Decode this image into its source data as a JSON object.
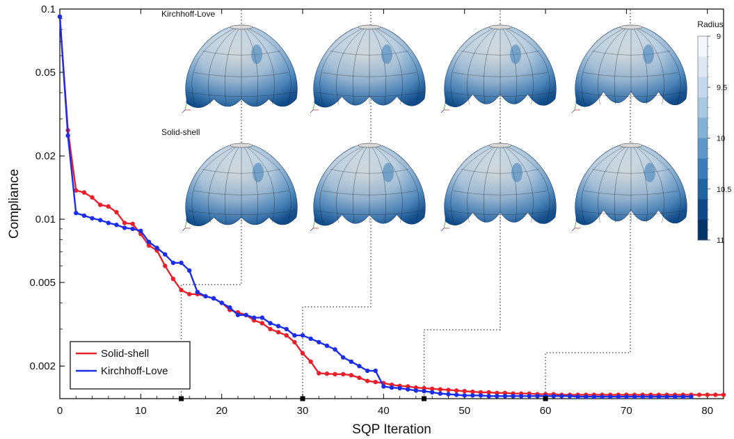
{
  "chart_data": {
    "type": "line",
    "xlabel": "SQP Iteration",
    "ylabel": "Compliance",
    "xlim": [
      0,
      82
    ],
    "ylim": [
      0.0014,
      0.1
    ],
    "y_scale": "log",
    "x_ticks": [
      0,
      10,
      20,
      30,
      40,
      50,
      60,
      70,
      80
    ],
    "y_ticks": [
      {
        "value": 0.1,
        "label": "0.1"
      },
      {
        "value": 0.05,
        "label": "0.05"
      },
      {
        "value": 0.02,
        "label": "0.02"
      },
      {
        "value": 0.01,
        "label": "0.01"
      },
      {
        "value": 0.005,
        "label": "0.005"
      },
      {
        "value": 0.002,
        "label": "0.002"
      }
    ],
    "legend_position": "bottom-left",
    "series": [
      {
        "name": "Solid-shell",
        "color": "#e8202a",
        "x": [
          0,
          1,
          2,
          3,
          4,
          5,
          6,
          7,
          8,
          9,
          10,
          11,
          12,
          13,
          14,
          15,
          16,
          17,
          18,
          19,
          20,
          21,
          22,
          23,
          24,
          25,
          26,
          27,
          28,
          29,
          30,
          31,
          32,
          33,
          34,
          35,
          36,
          37,
          38,
          39,
          40,
          41,
          42,
          43,
          44,
          45,
          46,
          47,
          48,
          49,
          50,
          51,
          52,
          53,
          54,
          55,
          56,
          57,
          58,
          59,
          60,
          61,
          62,
          63,
          64,
          65,
          66,
          67,
          68,
          69,
          70,
          71,
          72,
          73,
          74,
          75,
          76,
          77,
          78,
          79,
          80,
          81,
          82
        ],
        "y": [
          0.092,
          0.0265,
          0.0137,
          0.0134,
          0.0127,
          0.0117,
          0.0115,
          0.0108,
          0.0096,
          0.0095,
          0.0085,
          0.0075,
          0.0071,
          0.006,
          0.0052,
          0.0046,
          0.0044,
          0.0044,
          0.0043,
          0.0042,
          0.004,
          0.0037,
          0.0036,
          0.0035,
          0.0033,
          0.0032,
          0.003,
          0.0029,
          0.0028,
          0.0026,
          0.0023,
          0.0021,
          0.00185,
          0.00184,
          0.00183,
          0.00183,
          0.00181,
          0.00176,
          0.0017,
          0.00168,
          0.00166,
          0.00163,
          0.00161,
          0.0016,
          0.00158,
          0.00157,
          0.00156,
          0.00155,
          0.00154,
          0.00153,
          0.00152,
          0.00151,
          0.0015,
          0.0015,
          0.00149,
          0.00149,
          0.00148,
          0.00148,
          0.00148,
          0.00147,
          0.00147,
          0.00147,
          0.00146,
          0.00146,
          0.00146,
          0.00146,
          0.00146,
          0.00146,
          0.00146,
          0.00146,
          0.00146,
          0.00146,
          0.00146,
          0.00146,
          0.00146,
          0.00146,
          0.00146,
          0.00146,
          0.00146,
          0.00146,
          0.00146,
          0.00146,
          0.00146
        ]
      },
      {
        "name": "Kirchhoff-Love",
        "color": "#1a2ee8",
        "x": [
          0,
          1,
          2,
          3,
          4,
          5,
          6,
          7,
          8,
          9,
          10,
          11,
          12,
          13,
          14,
          15,
          16,
          17,
          18,
          19,
          20,
          21,
          22,
          23,
          24,
          25,
          26,
          27,
          28,
          29,
          30,
          31,
          32,
          33,
          34,
          35,
          36,
          37,
          38,
          39,
          40,
          41,
          42,
          43,
          44,
          45,
          46,
          47,
          48,
          49,
          50,
          51,
          52,
          53,
          54,
          55,
          56,
          57,
          58,
          59,
          60,
          61,
          62,
          63,
          64,
          65,
          66,
          67,
          68,
          69,
          70,
          71,
          72,
          73,
          74,
          75,
          76,
          77,
          78
        ],
        "y": [
          0.092,
          0.025,
          0.0107,
          0.0104,
          0.0101,
          0.0099,
          0.0096,
          0.0094,
          0.0091,
          0.009,
          0.0088,
          0.0078,
          0.0073,
          0.0068,
          0.0062,
          0.0062,
          0.0057,
          0.0045,
          0.0043,
          0.0042,
          0.004,
          0.0038,
          0.0035,
          0.0035,
          0.0034,
          0.0034,
          0.0032,
          0.0031,
          0.003,
          0.0028,
          0.0028,
          0.0027,
          0.0026,
          0.0025,
          0.0024,
          0.0022,
          0.0021,
          0.002,
          0.0019,
          0.0019,
          0.0016,
          0.00158,
          0.00157,
          0.00155,
          0.00153,
          0.00152,
          0.0015,
          0.00148,
          0.00147,
          0.00146,
          0.00145,
          0.00145,
          0.00145,
          0.00144,
          0.00144,
          0.00144,
          0.00144,
          0.00144,
          0.00144,
          0.00144,
          0.00144,
          0.00144,
          0.00144,
          0.00144,
          0.00143,
          0.00143,
          0.00143,
          0.00143,
          0.00143,
          0.00143,
          0.00143,
          0.00143,
          0.00143,
          0.00143,
          0.00143,
          0.00143,
          0.00143,
          0.00143,
          0.00143
        ]
      }
    ],
    "snapshot_iterations": [
      15,
      30,
      45,
      60
    ],
    "insets": {
      "row_labels": [
        "Kirchhoff-Love",
        "Solid-shell"
      ],
      "colorbar": {
        "title": "Radius",
        "tick_labels": [
          "9",
          "9.5",
          "10",
          "10.5",
          "11"
        ],
        "colors": [
          "#f3f6fb",
          "#dde8f3",
          "#c6d9ec",
          "#a9c8e2",
          "#86b1d6",
          "#5f97c8",
          "#3b7db8",
          "#1f63a3",
          "#0f4a88",
          "#073468"
        ]
      }
    }
  }
}
